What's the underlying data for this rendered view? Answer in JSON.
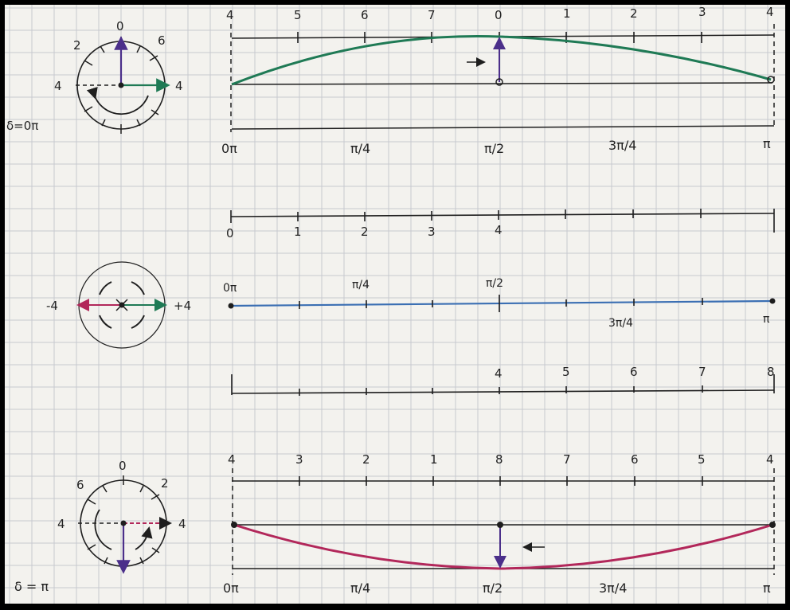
{
  "colors": {
    "paper": "#f3f2ee",
    "grid": "#c7c9cf",
    "ink": "#1e1e1e",
    "green": "#1f7a55",
    "blue": "#3b6fb3",
    "magenta": "#b2275a",
    "purple": "#4b2f8a"
  },
  "top_panel": {
    "delta_label": "δ=0π",
    "phasor_labels": {
      "top": "0",
      "upper_left": "2",
      "upper_right": "6",
      "left": "4",
      "right": "4"
    },
    "top_numbers": [
      "4",
      "5",
      "6",
      "7",
      "0",
      "1",
      "2",
      "3",
      "4"
    ],
    "bottom_labels": [
      "0π",
      "π/4",
      "π/2",
      "3π/4",
      "π"
    ]
  },
  "middle_panel": {
    "upper_numbers": [
      "0",
      "1",
      "2",
      "3",
      "4"
    ],
    "pi_labels": [
      "0π",
      "π/4",
      "π/2",
      "3π/4",
      "π"
    ],
    "phasor_labels": {
      "left": "-4",
      "right": "+4"
    },
    "lower_numbers": [
      "4",
      "5",
      "6",
      "7",
      "8"
    ]
  },
  "bottom_panel": {
    "delta_label": "δ = π",
    "phasor_labels": {
      "top": "0",
      "upper_left": "6",
      "upper_right": "2",
      "left": "4",
      "right": "4"
    },
    "top_numbers": [
      "4",
      "3",
      "2",
      "1",
      "8",
      "7",
      "6",
      "5",
      "4"
    ],
    "bottom_labels": [
      "0π",
      "π/4",
      "π/2",
      "3π/4",
      "π"
    ]
  }
}
